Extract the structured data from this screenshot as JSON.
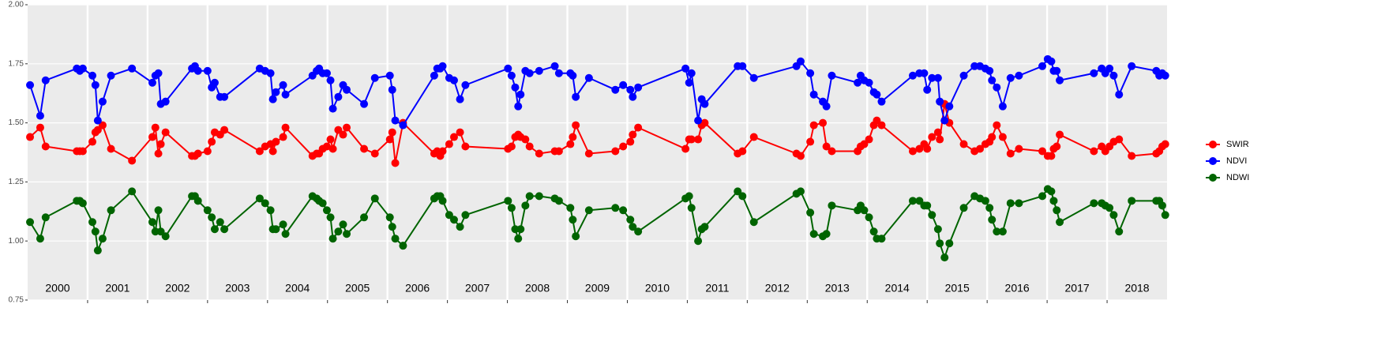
{
  "chart_data": {
    "type": "line",
    "x": [
      2000.04,
      2000.21,
      2000.3,
      2000.82,
      2000.87,
      2000.92,
      2001.08,
      2001.13,
      2001.17,
      2001.25,
      2001.39,
      2001.74,
      2002.08,
      2002.13,
      2002.18,
      2002.22,
      2002.3,
      2002.74,
      2002.79,
      2002.84,
      2003.0,
      2003.07,
      2003.12,
      2003.21,
      2003.28,
      2003.87,
      2003.96,
      2004.05,
      2004.09,
      2004.14,
      2004.26,
      2004.3,
      2004.75,
      2004.82,
      2004.86,
      2004.92,
      2004.99,
      2005.05,
      2005.09,
      2005.18,
      2005.26,
      2005.32,
      2005.61,
      2005.79,
      2006.04,
      2006.08,
      2006.13,
      2006.26,
      2006.78,
      2006.83,
      2006.88,
      2006.92,
      2007.03,
      2007.11,
      2007.21,
      2007.3,
      2008.01,
      2008.07,
      2008.13,
      2008.18,
      2008.22,
      2008.3,
      2008.37,
      2008.53,
      2008.79,
      2008.86,
      2009.05,
      2009.09,
      2009.14,
      2009.36,
      2009.8,
      2009.93,
      2010.05,
      2010.09,
      2010.18,
      2010.97,
      2011.03,
      2011.07,
      2011.18,
      2011.24,
      2011.29,
      2011.84,
      2011.92,
      2012.11,
      2012.82,
      2012.89,
      2013.05,
      2013.11,
      2013.26,
      2013.32,
      2013.41,
      2013.84,
      2013.89,
      2013.95,
      2014.03,
      2014.11,
      2014.16,
      2014.24,
      2014.76,
      2014.87,
      2014.95,
      2015.0,
      2015.08,
      2015.18,
      2015.21,
      2015.29,
      2015.37,
      2015.61,
      2015.79,
      2015.88,
      2015.97,
      2016.04,
      2016.08,
      2016.16,
      2016.26,
      2016.39,
      2016.53,
      2016.92,
      2017.01,
      2017.07,
      2017.11,
      2017.16,
      2017.21,
      2017.78,
      2017.91,
      2017.97,
      2018.04,
      2018.11,
      2018.2,
      2018.41,
      2018.82,
      2018.87,
      2018.92,
      2018.97
    ],
    "series": [
      {
        "name": "SWIR",
        "color": "#ff0000",
        "values": [
          1.44,
          1.48,
          1.4,
          1.38,
          1.38,
          1.38,
          1.42,
          1.46,
          1.47,
          1.49,
          1.39,
          1.34,
          1.44,
          1.48,
          1.37,
          1.41,
          1.46,
          1.36,
          1.36,
          1.37,
          1.38,
          1.42,
          1.46,
          1.45,
          1.47,
          1.38,
          1.4,
          1.41,
          1.38,
          1.42,
          1.44,
          1.48,
          1.36,
          1.37,
          1.37,
          1.39,
          1.4,
          1.43,
          1.39,
          1.47,
          1.45,
          1.48,
          1.39,
          1.37,
          1.43,
          1.46,
          1.33,
          1.5,
          1.37,
          1.38,
          1.36,
          1.38,
          1.41,
          1.44,
          1.46,
          1.4,
          1.39,
          1.4,
          1.44,
          1.45,
          1.44,
          1.43,
          1.4,
          1.37,
          1.38,
          1.38,
          1.41,
          1.44,
          1.49,
          1.37,
          1.38,
          1.4,
          1.42,
          1.45,
          1.48,
          1.39,
          1.43,
          1.43,
          1.43,
          1.49,
          1.5,
          1.37,
          1.38,
          1.44,
          1.37,
          1.36,
          1.42,
          1.49,
          1.5,
          1.4,
          1.38,
          1.38,
          1.4,
          1.41,
          1.43,
          1.49,
          1.51,
          1.49,
          1.38,
          1.39,
          1.41,
          1.39,
          1.44,
          1.46,
          1.43,
          1.58,
          1.5,
          1.41,
          1.38,
          1.39,
          1.41,
          1.42,
          1.44,
          1.49,
          1.44,
          1.37,
          1.39,
          1.38,
          1.36,
          1.36,
          1.39,
          1.4,
          1.45,
          1.38,
          1.4,
          1.38,
          1.4,
          1.42,
          1.43,
          1.36,
          1.37,
          1.38,
          1.4,
          1.41
        ]
      },
      {
        "name": "NDVI",
        "color": "#0000ff",
        "values": [
          1.66,
          1.53,
          1.68,
          1.73,
          1.72,
          1.73,
          1.7,
          1.66,
          1.51,
          1.59,
          1.7,
          1.73,
          1.67,
          1.7,
          1.71,
          1.58,
          1.59,
          1.73,
          1.74,
          1.72,
          1.72,
          1.65,
          1.67,
          1.61,
          1.61,
          1.73,
          1.72,
          1.71,
          1.6,
          1.63,
          1.66,
          1.62,
          1.7,
          1.72,
          1.73,
          1.71,
          1.71,
          1.68,
          1.56,
          1.61,
          1.66,
          1.64,
          1.58,
          1.69,
          1.7,
          1.64,
          1.51,
          1.49,
          1.7,
          1.73,
          1.73,
          1.74,
          1.69,
          1.68,
          1.6,
          1.66,
          1.73,
          1.7,
          1.65,
          1.57,
          1.62,
          1.72,
          1.71,
          1.72,
          1.74,
          1.71,
          1.71,
          1.7,
          1.61,
          1.69,
          1.64,
          1.66,
          1.64,
          1.61,
          1.65,
          1.73,
          1.67,
          1.71,
          1.51,
          1.6,
          1.58,
          1.74,
          1.74,
          1.69,
          1.74,
          1.76,
          1.71,
          1.62,
          1.59,
          1.57,
          1.7,
          1.67,
          1.7,
          1.68,
          1.67,
          1.63,
          1.62,
          1.59,
          1.7,
          1.71,
          1.71,
          1.64,
          1.69,
          1.69,
          1.59,
          1.51,
          1.57,
          1.7,
          1.74,
          1.74,
          1.73,
          1.72,
          1.68,
          1.65,
          1.57,
          1.69,
          1.7,
          1.74,
          1.77,
          1.76,
          1.72,
          1.72,
          1.68,
          1.71,
          1.73,
          1.71,
          1.73,
          1.7,
          1.62,
          1.74,
          1.72,
          1.7,
          1.71,
          1.7
        ]
      },
      {
        "name": "NDWI",
        "color": "#006400",
        "values": [
          1.08,
          1.01,
          1.1,
          1.17,
          1.17,
          1.16,
          1.08,
          1.04,
          0.96,
          1.01,
          1.13,
          1.21,
          1.08,
          1.04,
          1.13,
          1.04,
          1.02,
          1.19,
          1.19,
          1.17,
          1.13,
          1.1,
          1.05,
          1.08,
          1.05,
          1.18,
          1.16,
          1.13,
          1.05,
          1.05,
          1.07,
          1.03,
          1.19,
          1.18,
          1.17,
          1.16,
          1.13,
          1.1,
          1.01,
          1.04,
          1.07,
          1.03,
          1.1,
          1.18,
          1.1,
          1.06,
          1.01,
          0.98,
          1.18,
          1.19,
          1.19,
          1.17,
          1.11,
          1.09,
          1.06,
          1.11,
          1.17,
          1.14,
          1.05,
          1.01,
          1.05,
          1.15,
          1.19,
          1.19,
          1.18,
          1.17,
          1.14,
          1.09,
          1.02,
          1.13,
          1.14,
          1.13,
          1.09,
          1.06,
          1.04,
          1.18,
          1.19,
          1.14,
          1.0,
          1.05,
          1.06,
          1.21,
          1.19,
          1.08,
          1.2,
          1.21,
          1.12,
          1.03,
          1.02,
          1.03,
          1.15,
          1.13,
          1.15,
          1.13,
          1.1,
          1.04,
          1.01,
          1.01,
          1.17,
          1.17,
          1.15,
          1.15,
          1.11,
          1.05,
          0.99,
          0.93,
          0.99,
          1.14,
          1.19,
          1.18,
          1.17,
          1.14,
          1.09,
          1.04,
          1.04,
          1.16,
          1.16,
          1.19,
          1.22,
          1.21,
          1.17,
          1.13,
          1.08,
          1.16,
          1.16,
          1.15,
          1.14,
          1.11,
          1.04,
          1.17,
          1.17,
          1.17,
          1.15,
          1.11
        ]
      }
    ],
    "xlim": [
      2000,
      2019
    ],
    "xticks": [
      2001,
      2002,
      2003,
      2004,
      2005,
      2006,
      2007,
      2008,
      2009,
      2010,
      2011,
      2012,
      2013,
      2014,
      2015,
      2016,
      2017,
      2018
    ],
    "year_labels": [
      2000,
      2001,
      2002,
      2003,
      2004,
      2005,
      2006,
      2007,
      2008,
      2009,
      2010,
      2011,
      2012,
      2013,
      2014,
      2015,
      2016,
      2017,
      2018
    ],
    "ylim": [
      0.75,
      2
    ],
    "yticks": [
      {
        "value": 0.75,
        "label": "0.75"
      },
      {
        "value": 1,
        "label": "1.00"
      },
      {
        "value": 1.25,
        "label": "1.25"
      },
      {
        "value": 1.5,
        "label": "1.50"
      },
      {
        "value": 1.75,
        "label": "1.75"
      },
      {
        "value": 2,
        "label": "2.00"
      }
    ],
    "grid": true,
    "legend": "right"
  }
}
